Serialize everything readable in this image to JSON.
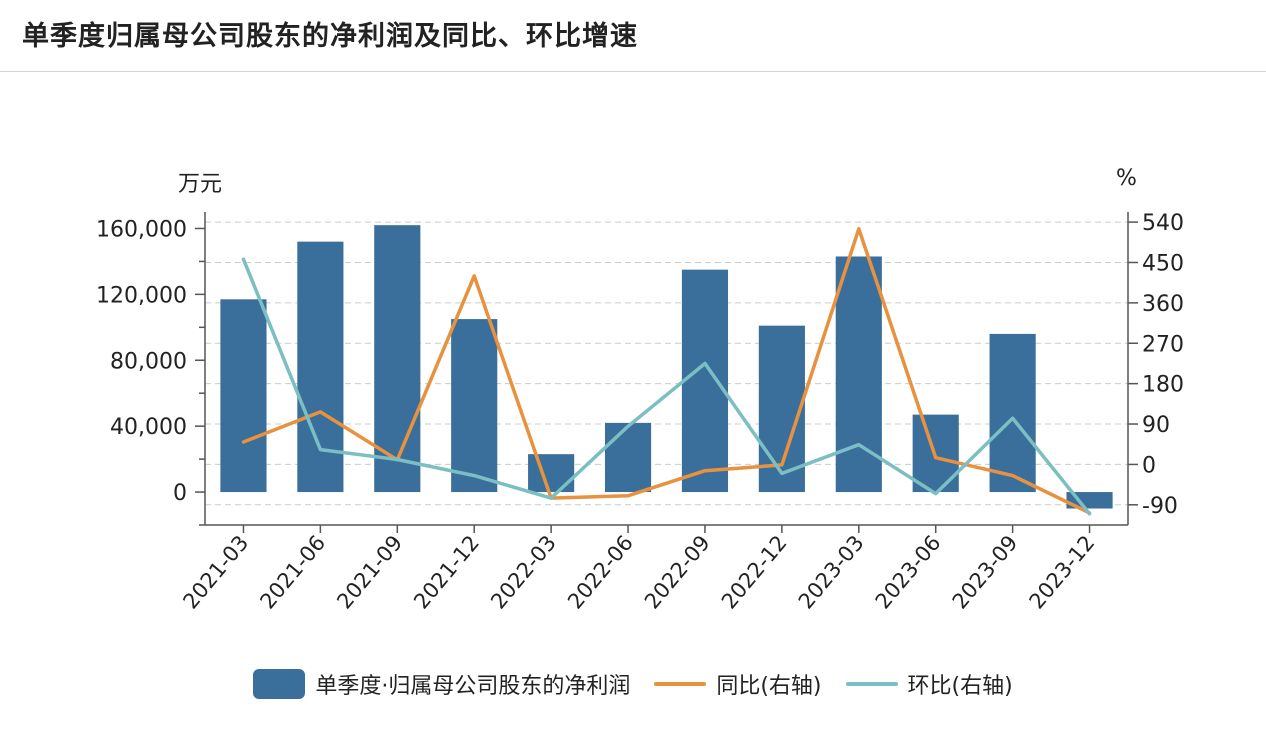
{
  "title": "单季度归属母公司股东的净利润及同比、环比增速",
  "colors": {
    "bar": "#3a6f9c",
    "yoy": "#e8913f",
    "qoq": "#7bbfc3",
    "axis": "#555555",
    "grid": "#cccccc"
  },
  "chart_data": {
    "type": "bar",
    "categories": [
      "2021-03",
      "2021-06",
      "2021-09",
      "2021-12",
      "2022-03",
      "2022-06",
      "2022-09",
      "2022-12",
      "2023-03",
      "2023-06",
      "2023-09",
      "2023-12"
    ],
    "series": [
      {
        "name": "单季度·归属母公司股东的净利润",
        "type": "bar",
        "axis": "left",
        "values": [
          117000,
          152000,
          162000,
          105000,
          23000,
          42000,
          135000,
          101000,
          143000,
          47000,
          96000,
          -10000
        ]
      },
      {
        "name": "同比(右轴)",
        "type": "line",
        "axis": "right",
        "values": [
          50,
          117,
          10,
          420,
          -75,
          -70,
          -14,
          -1,
          525,
          15,
          -25,
          -108
        ]
      },
      {
        "name": "环比(右轴)",
        "type": "line",
        "axis": "right",
        "values": [
          457,
          33,
          11,
          -25,
          -75,
          85,
          225,
          -20,
          44,
          -65,
          103,
          -110
        ]
      }
    ],
    "y_left": {
      "label": "万元",
      "ticks": [
        0,
        40000,
        80000,
        120000,
        160000
      ],
      "tick_labels": [
        "0",
        "40,000",
        "80,000",
        "120,000",
        "160,000"
      ],
      "range": [
        -20000,
        170000
      ]
    },
    "y_right": {
      "label": "%",
      "ticks": [
        -90,
        0,
        90,
        180,
        270,
        360,
        450,
        540
      ],
      "tick_labels": [
        "-90",
        "0",
        "90",
        "180",
        "270",
        "360",
        "450",
        "540"
      ],
      "range": [
        -135,
        562.5
      ]
    },
    "grid": true,
    "legend_position": "bottom"
  }
}
